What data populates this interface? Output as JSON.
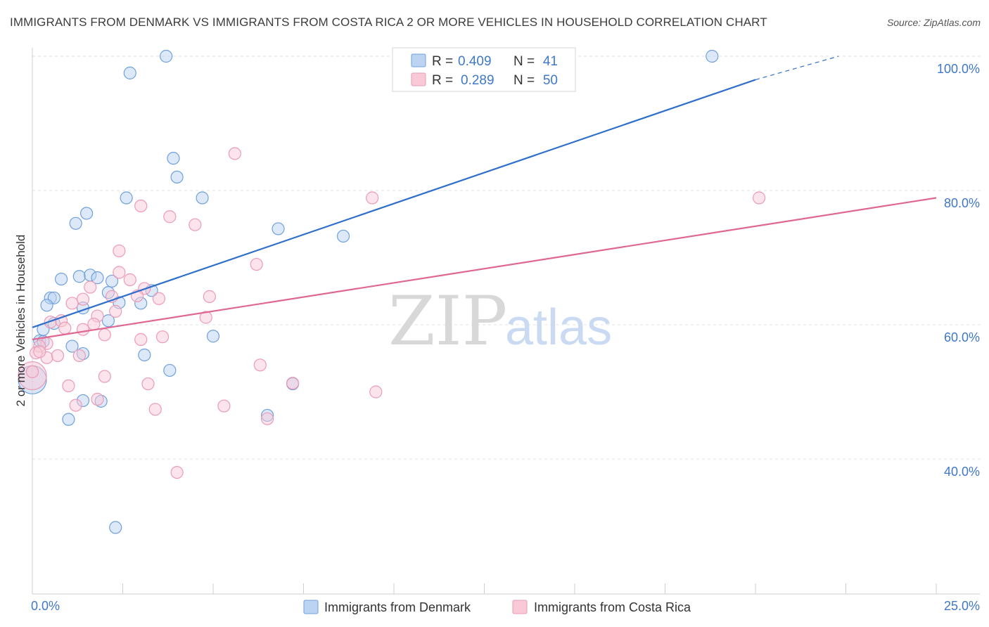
{
  "header": {
    "title": "IMMIGRANTS FROM DENMARK VS IMMIGRANTS FROM COSTA RICA 2 OR MORE VEHICLES IN HOUSEHOLD CORRELATION CHART",
    "source": "Source: ZipAtlas.com"
  },
  "watermark": {
    "zip": "ZIP",
    "atlas": "atlas"
  },
  "chart_data": {
    "type": "scatter",
    "ylabel": "2 or more Vehicles in Household",
    "xlim": [
      0,
      25
    ],
    "ylim": [
      20,
      100
    ],
    "x_tick_labels": {
      "min": "0.0%",
      "max": "25.0%"
    },
    "y_ticks": [
      {
        "value": 40,
        "label": "40.0%"
      },
      {
        "value": 60,
        "label": "60.0%"
      },
      {
        "value": 80,
        "label": "80.0%"
      },
      {
        "value": 100,
        "label": "100.0%"
      }
    ],
    "grid": true,
    "legend": {
      "placement": "top-center",
      "entries": [
        {
          "r_label": "R =",
          "r_value": "0.409",
          "n_label": "N =",
          "n_value": "41"
        },
        {
          "r_label": "R =",
          "r_value": "0.289",
          "n_label": "N =",
          "n_value": "50"
        }
      ]
    },
    "series": [
      {
        "name": "Immigrants from Denmark",
        "color": "#6fa0dc",
        "fill": "#bcd3f2",
        "line_color": "#2f6fcc",
        "trend": {
          "x0": 0,
          "y0": 59.6,
          "x1": 20,
          "y1": 96.5,
          "dash_to_x": 22.3,
          "dash_to_y": 100
        },
        "points": [
          [
            3.7,
            100
          ],
          [
            18.8,
            100
          ],
          [
            2.7,
            97.5
          ],
          [
            3.9,
            84.8
          ],
          [
            4.0,
            82.0
          ],
          [
            2.6,
            78.9
          ],
          [
            4.7,
            78.9
          ],
          [
            1.5,
            76.6
          ],
          [
            1.2,
            75.1
          ],
          [
            6.8,
            74.3
          ],
          [
            8.6,
            73.2
          ],
          [
            1.3,
            67.2
          ],
          [
            1.6,
            67.4
          ],
          [
            1.8,
            67.0
          ],
          [
            0.8,
            66.8
          ],
          [
            2.1,
            64.8
          ],
          [
            2.2,
            66.5
          ],
          [
            3.3,
            65.1
          ],
          [
            0.5,
            64.0
          ],
          [
            0.6,
            64.0
          ],
          [
            0.4,
            62.9
          ],
          [
            1.4,
            62.5
          ],
          [
            2.4,
            63.3
          ],
          [
            3.0,
            63.2
          ],
          [
            0.6,
            60.2
          ],
          [
            2.1,
            60.6
          ],
          [
            0.3,
            59.3
          ],
          [
            0.2,
            57.6
          ],
          [
            0.3,
            57.5
          ],
          [
            1.1,
            56.8
          ],
          [
            1.4,
            55.7
          ],
          [
            3.1,
            55.5
          ],
          [
            0.0,
            51.8
          ],
          [
            3.8,
            53.2
          ],
          [
            7.2,
            51.2
          ],
          [
            5.0,
            58.3
          ],
          [
            1.4,
            48.7
          ],
          [
            1.9,
            48.6
          ],
          [
            1.0,
            45.9
          ],
          [
            6.5,
            46.5
          ],
          [
            2.3,
            29.8
          ]
        ]
      },
      {
        "name": "Immigrants from Costa Rica",
        "color": "#ec9bb5",
        "fill": "#f8cad8",
        "line_color": "#e0678f",
        "trend": {
          "x0": 0,
          "y0": 57.8,
          "x1": 25,
          "y1": 78.9
        },
        "points": [
          [
            5.6,
            85.5
          ],
          [
            9.4,
            78.9
          ],
          [
            20.1,
            78.9
          ],
          [
            3.0,
            77.7
          ],
          [
            3.8,
            76.1
          ],
          [
            4.5,
            74.9
          ],
          [
            2.4,
            71.0
          ],
          [
            6.2,
            69.0
          ],
          [
            2.4,
            67.8
          ],
          [
            2.7,
            66.7
          ],
          [
            1.6,
            65.6
          ],
          [
            3.1,
            65.4
          ],
          [
            2.9,
            64.3
          ],
          [
            4.9,
            64.2
          ],
          [
            2.2,
            64.2
          ],
          [
            1.4,
            63.8
          ],
          [
            3.5,
            63.9
          ],
          [
            1.1,
            63.2
          ],
          [
            2.3,
            62.0
          ],
          [
            1.8,
            61.3
          ],
          [
            4.8,
            61.1
          ],
          [
            0.5,
            60.4
          ],
          [
            0.8,
            60.6
          ],
          [
            1.7,
            60.1
          ],
          [
            1.4,
            59.3
          ],
          [
            0.9,
            59.5
          ],
          [
            2.0,
            58.5
          ],
          [
            3.0,
            57.8
          ],
          [
            3.6,
            58.2
          ],
          [
            0.4,
            57.2
          ],
          [
            0.2,
            56.8
          ],
          [
            0.1,
            55.8
          ],
          [
            0.4,
            55.1
          ],
          [
            0.7,
            55.4
          ],
          [
            1.3,
            55.4
          ],
          [
            6.3,
            54.0
          ],
          [
            0.0,
            52.4
          ],
          [
            2.0,
            52.3
          ],
          [
            3.2,
            51.2
          ],
          [
            7.2,
            51.3
          ],
          [
            1.0,
            50.9
          ],
          [
            9.5,
            50.0
          ],
          [
            5.3,
            47.9
          ],
          [
            1.2,
            48.0
          ],
          [
            3.4,
            47.4
          ],
          [
            1.8,
            48.9
          ],
          [
            6.5,
            46.0
          ],
          [
            4.0,
            38.0
          ],
          [
            0.0,
            53.0
          ],
          [
            0.2,
            56.0
          ]
        ]
      }
    ]
  }
}
